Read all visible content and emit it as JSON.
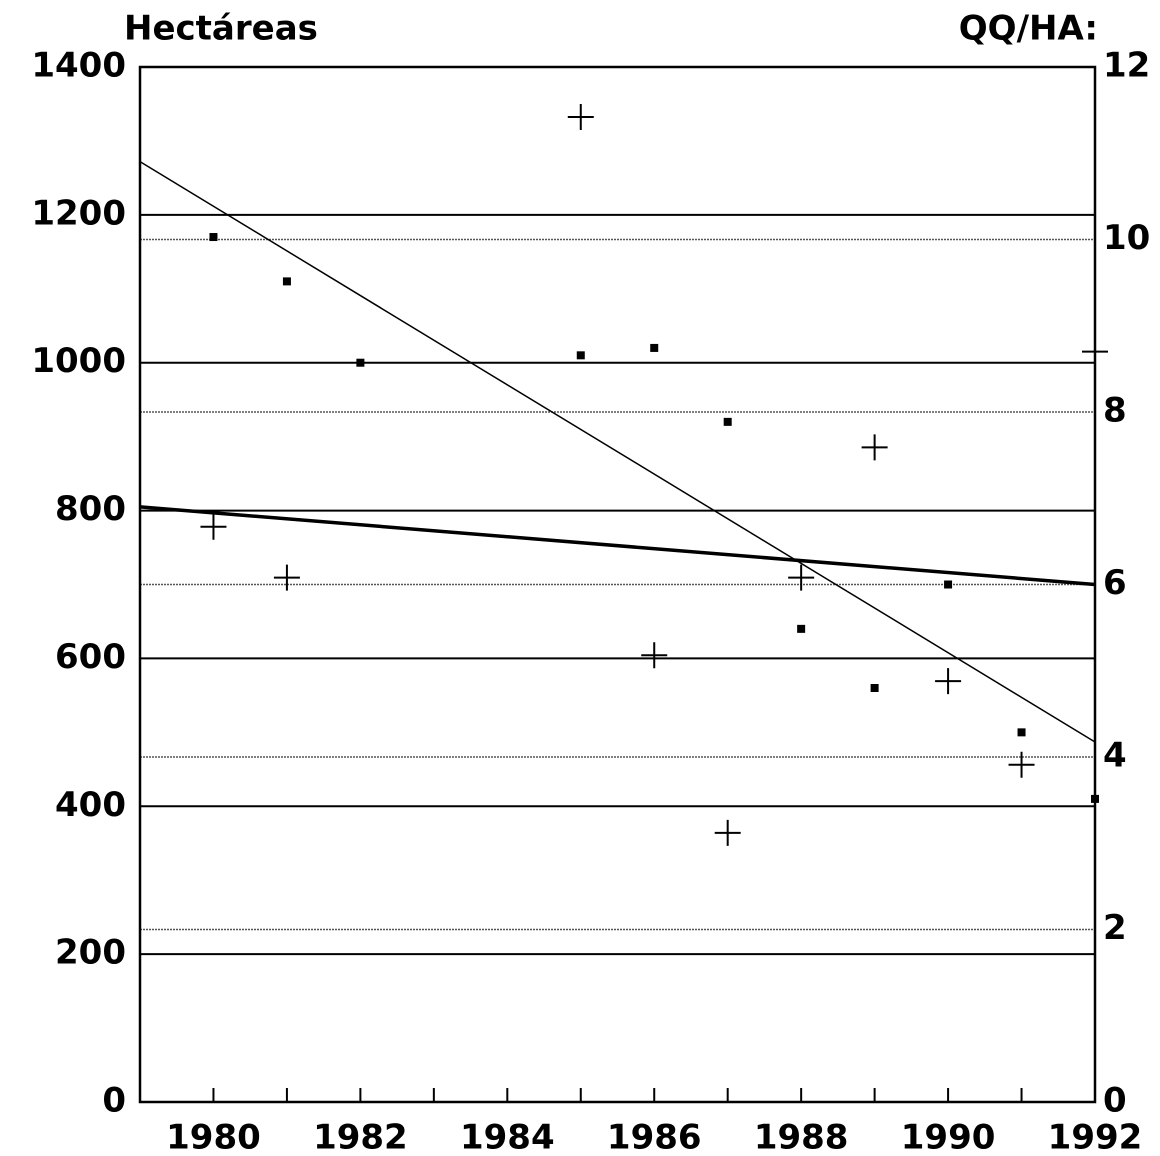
{
  "chart_data": {
    "type": "scatter",
    "y_label": "Hectáreas",
    "y2_label": "QQ/HA:",
    "xlim": [
      1979,
      1992
    ],
    "xticks": [
      1980,
      1982,
      1984,
      1986,
      1988,
      1990,
      1992
    ],
    "ylim": [
      0,
      1400
    ],
    "yticks": [
      0,
      200,
      400,
      600,
      800,
      1000,
      1200,
      1400
    ],
    "y2lim": [
      0,
      12
    ],
    "y2ticks": [
      0,
      2,
      4,
      6,
      8,
      10,
      12
    ],
    "grid": true,
    "series": [
      {
        "marker": "dot",
        "color": "#000000",
        "x": [
          1980,
          1981,
          1982,
          1985,
          1986,
          1987,
          1988,
          1989,
          1990,
          1991,
          1992
        ],
        "values": [
          1170,
          1110,
          1000,
          1010,
          1020,
          920,
          640,
          560,
          700,
          500,
          410
        ]
      },
      {
        "marker": "plus",
        "color": "#000000",
        "axis": "y2",
        "x": [
          1980,
          1981,
          1985,
          1986,
          1987,
          1988,
          1989,
          1990,
          1991,
          1992
        ],
        "values": [
          6.67,
          6.08,
          11.42,
          5.18,
          3.12,
          6.08,
          7.59,
          4.88,
          3.91,
          8.7
        ]
      },
      {
        "marker": "line",
        "color": "#000000",
        "width": 1.5,
        "x": [
          1979,
          1992
        ],
        "values": [
          1272,
          487
        ]
      },
      {
        "marker": "line",
        "color": "#000000",
        "width": 3.5,
        "axis": "y2",
        "x": [
          1979,
          1992
        ],
        "values": [
          6.9,
          6.0
        ]
      }
    ]
  }
}
